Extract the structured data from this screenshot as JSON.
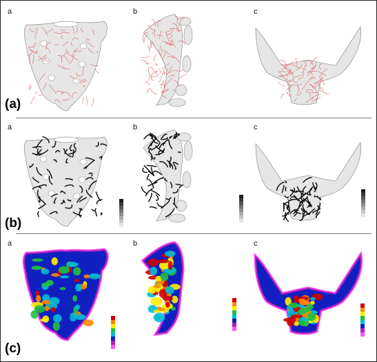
{
  "panels": [
    {
      "label": "(a)",
      "sub_labels": [
        "a",
        "b",
        "c"
      ],
      "style": "red network overlay"
    },
    {
      "label": "(b)",
      "sub_labels": [
        "a",
        "b",
        "c"
      ],
      "style": "black network overlay with grayscale bar"
    },
    {
      "label": "(c)",
      "sub_labels": [
        "a",
        "b",
        "c"
      ],
      "style": "rainbow density map with color bar"
    }
  ],
  "colors": {
    "bone_fill": "#e6e6e6",
    "bone_outline": "#9a9a9a",
    "network_red": "#e07878",
    "network_black": "#111111",
    "density_scale": [
      "#d00000",
      "#ff8800",
      "#ffee00",
      "#22c040",
      "#00bcd4",
      "#1020c0",
      "#b020c0",
      "#ff55ff"
    ]
  }
}
